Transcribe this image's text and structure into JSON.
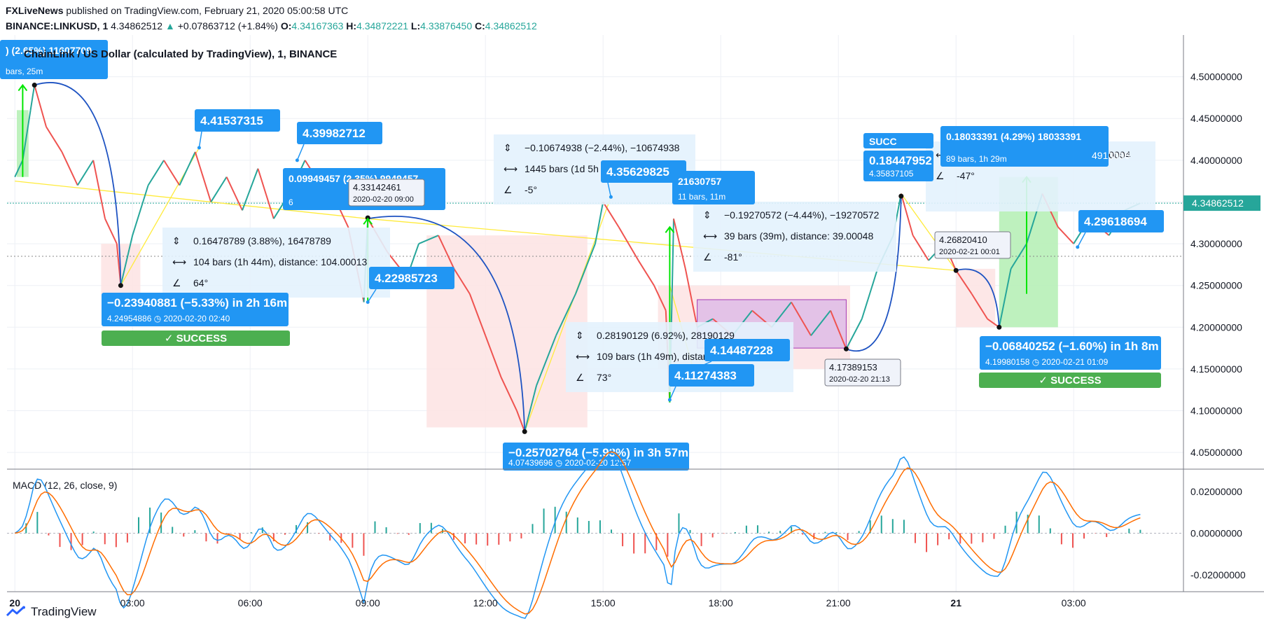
{
  "header": {
    "line1_source": "FXLiveNews",
    "line1_rest": "published on TradingView.com, February 21, 2020 05:00:58 UTC",
    "symbol": "BINANCE:LINKUSD, 1",
    "last": "4.34862512",
    "change_arrow": "▲",
    "change": "+0.07863712 (+1.84%)",
    "o_label": "O:",
    "o_value": "4.34167363",
    "h_label": "H:",
    "h_value": "4.34872221",
    "l_label": "L:",
    "l_value": "4.33876450",
    "c_label": "C:",
    "c_value": "4.34862512"
  },
  "footer": {
    "brand": "TradingView",
    "logo_icon": "tradingview-logo-icon"
  },
  "colors": {
    "up": "#26a69a",
    "down": "#ef5350",
    "blue": "#2196f3",
    "curve": "#1e53c2",
    "green": "#4caf50",
    "yellow": "#ffeb3b",
    "pink_zone": "#fde4e4",
    "green_zone": "#b7f0b7",
    "purple_zone": "#e1bee7",
    "info_box": "#e3f2fd"
  },
  "chart_data": {
    "type": "line",
    "title": "ChainLink / US Dollar (calculated by TradingView), 1, BINANCE",
    "price_axis": {
      "ylim": [
        4.03,
        4.55
      ],
      "ticks": [
        "4.50000000",
        "4.45000000",
        "4.40000000",
        "4.35000000",
        "4.30000000",
        "4.25000000",
        "4.20000000",
        "4.15000000",
        "4.10000000",
        "4.05000000"
      ],
      "tick_values": [
        4.5,
        4.45,
        4.4,
        4.35,
        4.3,
        4.25,
        4.2,
        4.15,
        4.1,
        4.05
      ],
      "last_price_label": "4.34862512",
      "last_price": 4.34862512,
      "ref_line": 4.285
    },
    "time_axis": {
      "labels": [
        "20",
        "03:00",
        "06:00",
        "09:00",
        "12:00",
        "15:00",
        "18:00",
        "21:00",
        "21",
        "03:00"
      ],
      "hours": [
        0,
        3,
        6,
        9,
        12,
        15,
        18,
        21,
        24,
        27
      ],
      "xlim_hours": [
        -0.2,
        29.8
      ]
    },
    "series": [
      {
        "name": "LINKUSD",
        "points": [
          [
            0.0,
            4.38
          ],
          [
            0.2,
            4.4
          ],
          [
            0.4,
            4.46
          ],
          [
            0.5,
            4.49
          ],
          [
            0.8,
            4.44
          ],
          [
            1.2,
            4.41
          ],
          [
            1.6,
            4.37
          ],
          [
            2.0,
            4.4
          ],
          [
            2.3,
            4.33
          ],
          [
            2.6,
            4.3
          ],
          [
            2.7,
            4.25
          ],
          [
            3.0,
            4.31
          ],
          [
            3.4,
            4.37
          ],
          [
            3.8,
            4.4
          ],
          [
            4.2,
            4.37
          ],
          [
            4.6,
            4.41
          ],
          [
            5.0,
            4.35
          ],
          [
            5.4,
            4.38
          ],
          [
            5.8,
            4.34
          ],
          [
            6.2,
            4.39
          ],
          [
            6.6,
            4.33
          ],
          [
            7.0,
            4.36
          ],
          [
            7.4,
            4.4
          ],
          [
            7.8,
            4.37
          ],
          [
            8.2,
            4.35
          ],
          [
            8.5,
            4.32
          ],
          [
            8.9,
            4.23
          ],
          [
            9.0,
            4.33
          ],
          [
            9.5,
            4.29
          ],
          [
            10.0,
            4.26
          ],
          [
            10.3,
            4.3
          ],
          [
            10.8,
            4.31
          ],
          [
            11.2,
            4.27
          ],
          [
            11.6,
            4.24
          ],
          [
            12.0,
            4.19
          ],
          [
            12.4,
            4.14
          ],
          [
            12.8,
            4.1
          ],
          [
            13.0,
            4.075
          ],
          [
            13.3,
            4.13
          ],
          [
            13.8,
            4.19
          ],
          [
            14.3,
            4.24
          ],
          [
            14.8,
            4.3
          ],
          [
            15.0,
            4.35
          ],
          [
            15.4,
            4.32
          ],
          [
            15.9,
            4.28
          ],
          [
            16.3,
            4.25
          ],
          [
            16.6,
            4.22
          ],
          [
            16.7,
            4.11
          ],
          [
            16.8,
            4.33
          ],
          [
            17.1,
            4.27
          ],
          [
            17.4,
            4.2
          ],
          [
            17.8,
            4.21
          ],
          [
            18.3,
            4.19
          ],
          [
            18.8,
            4.22
          ],
          [
            19.3,
            4.2
          ],
          [
            19.8,
            4.23
          ],
          [
            20.3,
            4.19
          ],
          [
            20.8,
            4.22
          ],
          [
            21.2,
            4.174
          ],
          [
            21.6,
            4.21
          ],
          [
            22.0,
            4.27
          ],
          [
            22.4,
            4.31
          ],
          [
            22.6,
            4.36
          ],
          [
            22.9,
            4.31
          ],
          [
            23.3,
            4.28
          ],
          [
            23.7,
            4.3
          ],
          [
            24.0,
            4.268
          ],
          [
            24.4,
            4.24
          ],
          [
            24.8,
            4.21
          ],
          [
            25.1,
            4.2
          ],
          [
            25.4,
            4.27
          ],
          [
            25.8,
            4.3
          ],
          [
            26.2,
            4.36
          ],
          [
            26.6,
            4.32
          ],
          [
            27.0,
            4.3
          ],
          [
            27.4,
            4.33
          ],
          [
            27.9,
            4.31
          ],
          [
            28.3,
            4.34
          ],
          [
            28.7,
            4.3486
          ]
        ]
      }
    ],
    "macd": {
      "title": "MACD (12, 26, close, 9)",
      "ylim": [
        -0.028,
        0.03
      ],
      "ticks": [
        "0.02000000",
        "0.00000000",
        "-0.02000000"
      ],
      "tick_values": [
        0.02,
        0.0,
        -0.02
      ]
    },
    "annotations": {
      "price_labels": [
        {
          "text": "4.41537315",
          "hour": 4.7,
          "price": 4.415
        },
        {
          "text": "4.39982712",
          "hour": 7.2,
          "price": 4.4
        },
        {
          "text": "4.22985723",
          "hour": 9.0,
          "price": 4.23
        },
        {
          "text": "4.35629825",
          "hour": 15.2,
          "price": 4.356
        },
        {
          "text": "4.14487228",
          "hour": 17.1,
          "price": 4.145
        },
        {
          "text": "4.11274383",
          "hour": 16.7,
          "price": 4.113
        },
        {
          "text": "4.29618694",
          "hour": 27.1,
          "price": 4.296
        }
      ],
      "swing_labels": [
        {
          "main": "−0.23940881 (−5.33%) in 2h 16m",
          "sub_price": "4.24954886",
          "sub_time": "2020-02-20  02:40"
        },
        {
          "main": "−0.25702764 (−5.93%) in 3h 57m",
          "sub_price": "4.07439696",
          "sub_time": "2020-02-20  12:57"
        },
        {
          "main": "−0.06840252 (−1.60%) in 1h 8m",
          "sub_price": "4.19980158",
          "sub_time": "2020-02-21  01:09"
        },
        {
          "main": "0.18447952",
          "sub_price": "4.35837105",
          "sub_time": ""
        },
        {
          "main": "0.09949457 (2.35%) 9949457",
          "sub_price": "6",
          "sub_time": ""
        },
        {
          "main": ") (2.65%) 11607709",
          "sub_price": "bars, 25m",
          "sub_time": ""
        }
      ],
      "point_tags": [
        {
          "price": "4.33142461",
          "time": "2020-02-20 09:00"
        },
        {
          "price": "4.17389153",
          "time": "2020-02-20 21:13"
        },
        {
          "price": "4.26820410",
          "time": "2020-02-21 00:01"
        }
      ],
      "measure_boxes": [
        {
          "range": "0.16478789 (3.88%), 16478789",
          "bars": "104 bars (1h 44m), distance: 104.00013",
          "angle": "64°"
        },
        {
          "range": "−0.10674938 (−2.44%), −10674938",
          "bars": "1445 bars (1d 5h",
          "angle": "-5°"
        },
        {
          "range": "0.28190129 (6.92%), 28190129",
          "bars": "109 bars (1h 49m), distance: 109.00036",
          "angle": "73°"
        },
        {
          "range": "−0.19270572 (−4.44%), −19270572",
          "bars": "39 bars (39m), distance: 39.00048",
          "angle": "-81°"
        },
        {
          "range": "0.18033391 (4.29%) 18033391",
          "bars": "89 bars, 1h 29m",
          "angle": ""
        },
        {
          "range": "",
          "bars": "109 bars (1h 49m), distance: 109.00004",
          "angle": "-47°"
        }
      ],
      "partial_labels": [
        "21630757",
        "11 bars, 11m",
        "4913096",
        "SUCC"
      ],
      "success": [
        "SUCCESS",
        "SUCCESS",
        "SUCCESS"
      ]
    }
  }
}
